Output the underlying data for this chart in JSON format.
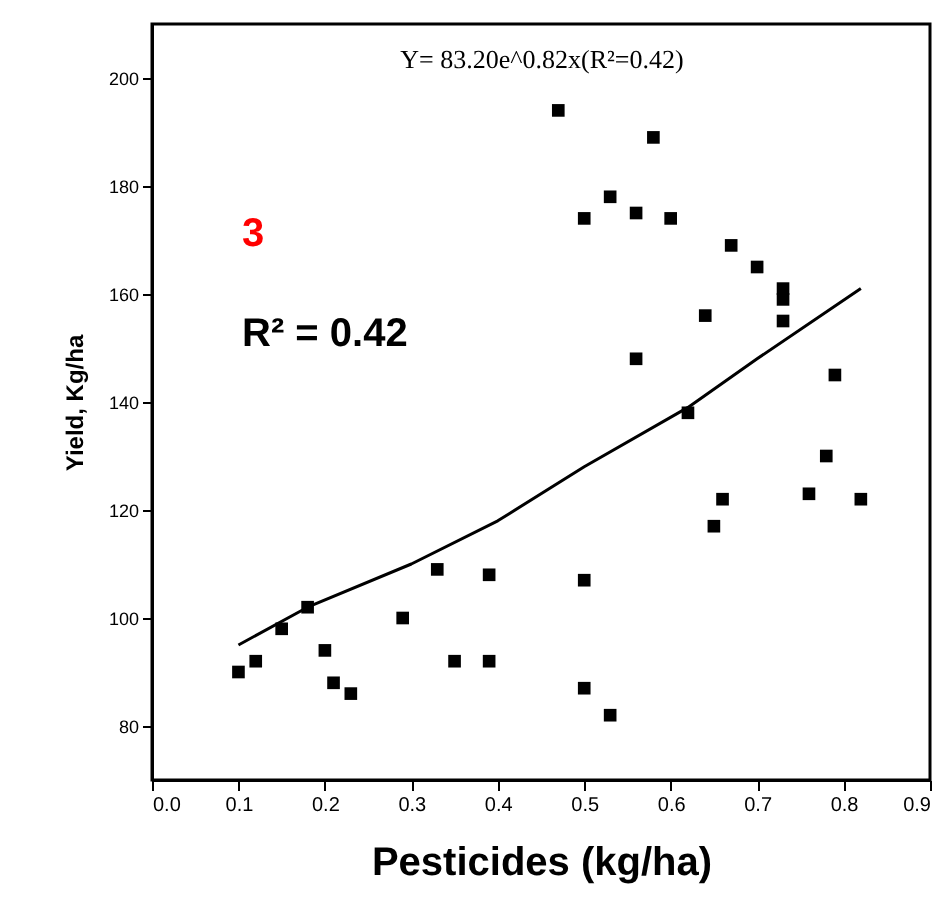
{
  "chart_data": {
    "type": "scatter",
    "xlabel": "Pesticides (kg/ha)",
    "ylabel": "Yield, Kg/ha",
    "annotations": [
      "Y= 83.20e^0.82x(R²=0.42)",
      "3",
      "R² = 0.42"
    ],
    "xlim": [
      0,
      0.9
    ],
    "xticks": [
      {
        "value": 0,
        "label": "0.0"
      },
      0.1,
      0.2,
      0.3,
      0.4,
      0.5,
      0.6,
      0.7,
      0.8,
      0.9
    ],
    "ylim": [
      70,
      210
    ],
    "yticks": [
      80,
      100,
      120,
      140,
      160,
      180,
      200
    ],
    "grid": false,
    "marker": "square",
    "series": [
      {
        "color": "#000000",
        "x": [
          0.1,
          0.12,
          0.15,
          0.18,
          0.2,
          0.21,
          0.23,
          0.29,
          0.33,
          0.35,
          0.39,
          0.39,
          0.47,
          0.5,
          0.5,
          0.5,
          0.53,
          0.53,
          0.56,
          0.56,
          0.58,
          0.6,
          0.62,
          0.64,
          0.65,
          0.66,
          0.67,
          0.7,
          0.73,
          0.73,
          0.73,
          0.76,
          0.78,
          0.79,
          0.82
        ],
        "values": [
          90,
          92,
          98,
          102,
          94,
          88,
          86,
          100,
          109,
          92,
          108,
          92,
          194,
          174,
          107,
          87,
          82,
          178,
          175,
          148,
          189,
          174,
          138,
          156,
          117,
          122,
          169,
          165,
          161,
          159,
          155,
          123,
          130,
          145,
          122
        ]
      },
      {
        "type": "line",
        "color": "#000000",
        "marker": "none",
        "line_style": "solid",
        "x": [
          0.1,
          0.18,
          0.3,
          0.4,
          0.5,
          0.62,
          0.7,
          0.82
        ],
        "values": [
          95,
          102,
          110,
          118,
          128,
          139,
          148,
          161
        ]
      }
    ]
  }
}
